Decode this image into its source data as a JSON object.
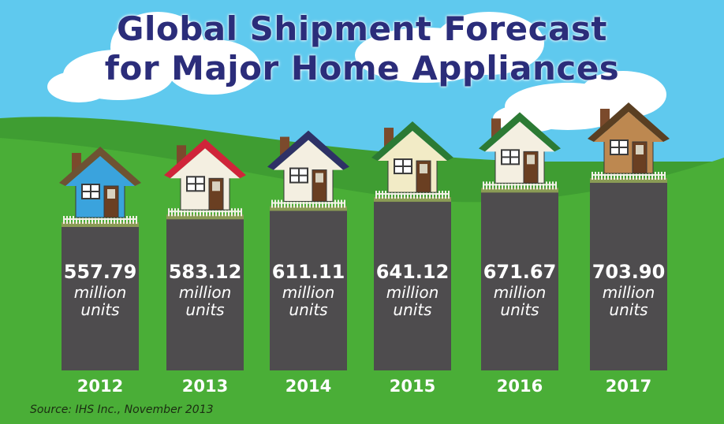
{
  "title": {
    "line1": "Global Shipment Forecast",
    "line2": "for Major Home Appliances"
  },
  "source": "Source: IHS Inc., November 2013",
  "colors": {
    "sky": "#5fc9ee",
    "grass": "#43a935",
    "bar": "#4e4c4e",
    "title": "#2b2d7a"
  },
  "chart_data": {
    "type": "bar",
    "title": "Global Shipment Forecast for Major Home Appliances",
    "categories": [
      "2012",
      "2013",
      "2014",
      "2015",
      "2016",
      "2017"
    ],
    "values": [
      557.79,
      583.12,
      611.11,
      641.12,
      671.67,
      703.9
    ],
    "value_labels": [
      "557.79",
      "583.12",
      "611.11",
      "641.12",
      "671.67",
      "703.90"
    ],
    "unit_line1": "million",
    "unit_line2": "units",
    "house_colors": [
      {
        "wall": "#3aa3dd",
        "roof": "#6e5233"
      },
      {
        "wall": "#f4efe1",
        "roof": "#d0243a"
      },
      {
        "wall": "#f4efe1",
        "roof": "#2e3166"
      },
      {
        "wall": "#f2ebc6",
        "roof": "#2c7a34"
      },
      {
        "wall": "#f4efe1",
        "roof": "#2c7a34"
      },
      {
        "wall": "#bd8850",
        "roof": "#5a3f22"
      }
    ],
    "grid": false,
    "legend": "none"
  }
}
